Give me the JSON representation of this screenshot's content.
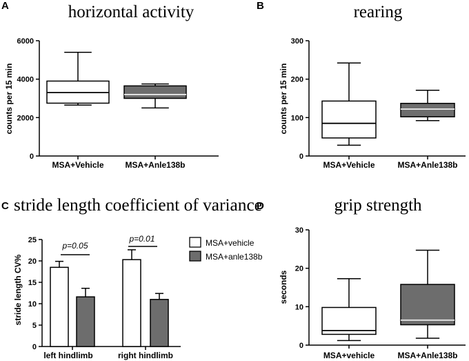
{
  "chart_data": [
    {
      "panel": "A",
      "type": "box",
      "title": "horizontal activity",
      "ylabel": "counts per 15 min",
      "ylim": [
        0,
        6000
      ],
      "yticks": [
        0,
        2000,
        4000,
        6000
      ],
      "categories": [
        "MSA+Vehicle",
        "MSA+Anle138b"
      ],
      "boxes": [
        {
          "min": 2650,
          "q1": 2750,
          "median": 3300,
          "q3": 3900,
          "max": 5400,
          "color": "#ffffff"
        },
        {
          "min": 2500,
          "q1": 3000,
          "median": 3200,
          "q3": 3650,
          "max": 3750,
          "color": "#6d6d6d"
        }
      ]
    },
    {
      "panel": "B",
      "type": "box",
      "title": "rearing",
      "ylabel": "counts per 15 min",
      "ylim": [
        0,
        300
      ],
      "yticks": [
        0,
        100,
        200,
        300
      ],
      "categories": [
        "MSA+Vehicle",
        "MSA+Anle138b"
      ],
      "boxes": [
        {
          "min": 28,
          "q1": 47,
          "median": 85,
          "q3": 143,
          "max": 242,
          "color": "#ffffff"
        },
        {
          "min": 92,
          "q1": 102,
          "median": 122,
          "q3": 137,
          "max": 171,
          "color": "#6d6d6d"
        }
      ]
    },
    {
      "panel": "C",
      "type": "bar",
      "title": "stride length coefficient of variance",
      "ylabel": "stride length CV%",
      "ylim": [
        0,
        25
      ],
      "yticks": [
        0,
        5,
        10,
        15,
        20,
        25
      ],
      "categories": [
        "left hindlimb",
        "right hindlimb"
      ],
      "series": [
        {
          "name": "MSA+vehicle",
          "values": [
            18.5,
            20.3
          ],
          "errors": [
            1.4,
            2.3
          ],
          "color": "#ffffff"
        },
        {
          "name": "MSA+anle138b",
          "values": [
            11.6,
            11.0
          ],
          "errors": [
            2.0,
            1.4
          ],
          "color": "#6d6d6d"
        }
      ],
      "annotations": [
        "p=0.05",
        "p=0.01"
      ]
    },
    {
      "panel": "D",
      "type": "box",
      "title": "grip strength",
      "ylabel": "seconds",
      "ylim": [
        0,
        30
      ],
      "yticks": [
        0,
        10,
        20,
        30
      ],
      "categories": [
        "MSA+vehicle",
        "MSA+Anle138b"
      ],
      "boxes": [
        {
          "min": 1.2,
          "q1": 2.8,
          "median": 3.8,
          "q3": 9.8,
          "max": 17.3,
          "color": "#ffffff"
        },
        {
          "min": 1.8,
          "q1": 5.3,
          "median": 6.5,
          "q3": 15.8,
          "max": 24.7,
          "color": "#6d6d6d"
        }
      ]
    }
  ]
}
